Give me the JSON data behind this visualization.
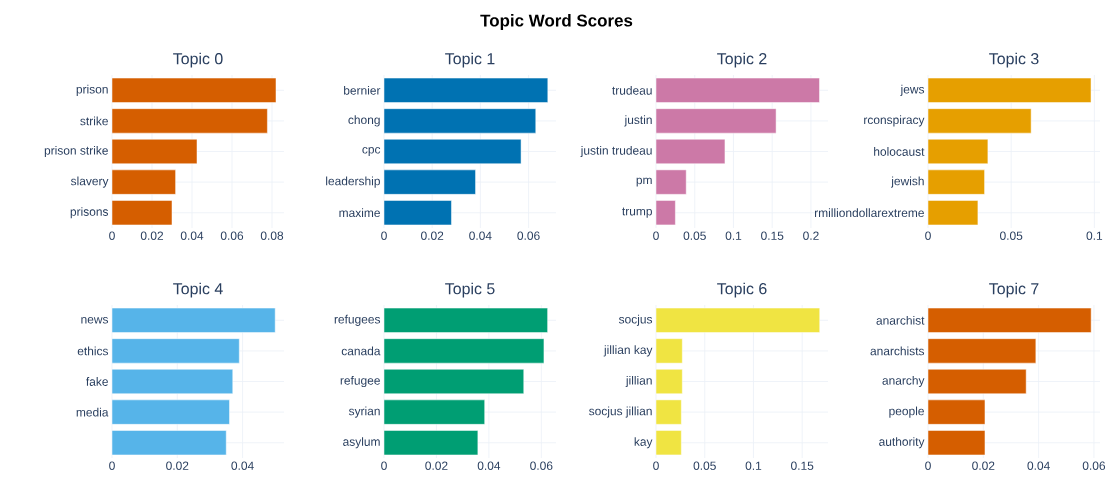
{
  "chart_data": [
    {
      "type": "bar",
      "orientation": "horizontal",
      "title": "Topic 0",
      "annotations": [
        "Topic Word Scores"
      ],
      "categories": [
        "prison",
        "strike",
        "prison strike",
        "slavery",
        "prisons"
      ],
      "values": [
        0.082,
        0.0777,
        0.0425,
        0.0318,
        0.03
      ],
      "color": "#d55e00",
      "xlim": [
        0,
        0.086
      ],
      "xticks": [
        0,
        0.02,
        0.04,
        0.06,
        0.08
      ],
      "grid": true
    },
    {
      "type": "bar",
      "orientation": "horizontal",
      "title": "Topic 1",
      "categories": [
        "bernier",
        "chong",
        "cpc",
        "leadership",
        "maxime"
      ],
      "values": [
        0.068,
        0.063,
        0.0569,
        0.038,
        0.028
      ],
      "color": "#0072b2",
      "xlim": [
        0,
        0.0714
      ],
      "xticks": [
        0,
        0.02,
        0.04,
        0.06
      ],
      "grid": true
    },
    {
      "type": "bar",
      "orientation": "horizontal",
      "title": "Topic 2",
      "categories": [
        "trudeau",
        "justin",
        "justin trudeau",
        "pm",
        "trump"
      ],
      "values": [
        0.211,
        0.155,
        0.089,
        0.039,
        0.025
      ],
      "color": "#cc79a7",
      "xlim": [
        0,
        0.222
      ],
      "xticks": [
        0,
        0.05,
        0.1,
        0.15,
        0.2
      ],
      "grid": true
    },
    {
      "type": "bar",
      "orientation": "horizontal",
      "title": "Topic 3",
      "categories": [
        "jews",
        "rconspiracy",
        "holocaust",
        "jewish",
        "rmilliondollarextreme"
      ],
      "values": [
        0.098,
        0.062,
        0.036,
        0.034,
        0.03
      ],
      "color": "#e69f00",
      "xlim": [
        0,
        0.1034
      ],
      "xticks": [
        0,
        0.05,
        0.1
      ],
      "grid": true
    },
    {
      "type": "bar",
      "orientation": "horizontal",
      "title": "Topic 4",
      "categories": [
        "news",
        "ethics",
        "fake",
        "media",
        null
      ],
      "values": [
        0.05,
        0.039,
        0.037,
        0.036,
        0.035
      ],
      "color": "#56b4e9",
      "xlim": [
        0,
        0.0527
      ],
      "xticks": [
        0,
        0.02,
        0.04
      ],
      "grid": true
    },
    {
      "type": "bar",
      "orientation": "horizontal",
      "title": "Topic 5",
      "categories": [
        "refugees",
        "canada",
        "refugee",
        "syrian",
        "asylum"
      ],
      "values": [
        0.0624,
        0.061,
        0.0533,
        0.0384,
        0.0358
      ],
      "color": "#009e73",
      "xlim": [
        0,
        0.0656
      ],
      "xticks": [
        0,
        0.02,
        0.04,
        0.06
      ],
      "grid": true
    },
    {
      "type": "bar",
      "orientation": "horizontal",
      "title": "Topic 6",
      "categories": [
        "socjus",
        "jillian kay",
        "jillian",
        "socjus jillian",
        "kay"
      ],
      "values": [
        0.168,
        0.027,
        0.027,
        0.026,
        0.026
      ],
      "color": "#f0e442",
      "xlim": [
        0,
        0.1765
      ],
      "xticks": [
        0,
        0.05,
        0.1,
        0.15
      ],
      "grid": true
    },
    {
      "type": "bar",
      "orientation": "horizontal",
      "title": "Topic 7",
      "categories": [
        "anarchist",
        "anarchists",
        "anarchy",
        "people",
        "authority"
      ],
      "values": [
        0.059,
        0.039,
        0.0355,
        0.0206,
        0.0206
      ],
      "color": "#d55e00",
      "xlim": [
        0,
        0.0622
      ],
      "xticks": [
        0,
        0.02,
        0.04,
        0.06
      ],
      "grid": true
    }
  ]
}
